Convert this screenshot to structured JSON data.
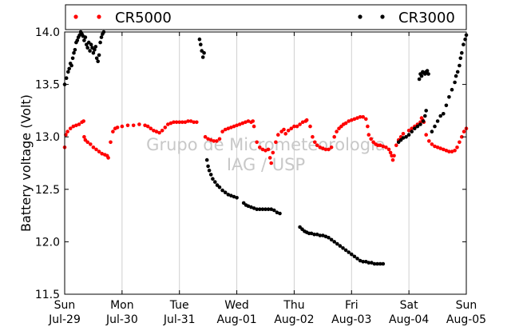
{
  "chart_data": {
    "type": "scatter",
    "title": "",
    "xlabel": "",
    "ylabel": "Battery voltage (Volt)",
    "ylim": [
      11.5,
      14.0
    ],
    "xlim": [
      0,
      7
    ],
    "grid": "x",
    "yticks": [
      11.5,
      12.0,
      12.5,
      13.0,
      13.5,
      14.0
    ],
    "ytick_labels": [
      "11.5",
      "12.0",
      "12.5",
      "13.0",
      "13.5",
      "14.0"
    ],
    "xticks": [
      {
        "x": 0,
        "day": "Sun",
        "date": "Jul-29"
      },
      {
        "x": 1,
        "day": "Mon",
        "date": "Jul-30"
      },
      {
        "x": 2,
        "day": "Tue",
        "date": "Jul-31"
      },
      {
        "x": 3,
        "day": "Wed",
        "date": "Aug-01"
      },
      {
        "x": 4,
        "day": "Thu",
        "date": "Aug-02"
      },
      {
        "x": 5,
        "day": "Fri",
        "date": "Aug-03"
      },
      {
        "x": 6,
        "day": "Sat",
        "date": "Aug-04"
      },
      {
        "x": 7,
        "day": "Sun",
        "date": "Aug-05"
      }
    ],
    "legend": {
      "placement": "top",
      "entries": [
        "CR5000",
        "CR3000"
      ]
    },
    "watermark": [
      "Grupo de Micrometeorologia",
      "IAG / USP"
    ],
    "series": [
      {
        "name": "CR5000",
        "color": "#ff0000",
        "points": [
          [
            0.0,
            12.9
          ],
          [
            0.02,
            13.02
          ],
          [
            0.05,
            13.05
          ],
          [
            0.1,
            13.08
          ],
          [
            0.15,
            13.1
          ],
          [
            0.2,
            13.11
          ],
          [
            0.25,
            13.12
          ],
          [
            0.3,
            13.14
          ],
          [
            0.33,
            13.15
          ],
          [
            0.34,
            13.0
          ],
          [
            0.36,
            12.97
          ],
          [
            0.4,
            12.95
          ],
          [
            0.45,
            12.93
          ],
          [
            0.5,
            12.9
          ],
          [
            0.55,
            12.88
          ],
          [
            0.6,
            12.86
          ],
          [
            0.65,
            12.84
          ],
          [
            0.7,
            12.83
          ],
          [
            0.74,
            12.82
          ],
          [
            0.76,
            12.8
          ],
          [
            0.8,
            12.95
          ],
          [
            0.84,
            13.05
          ],
          [
            0.88,
            13.08
          ],
          [
            0.92,
            13.09
          ],
          [
            1.0,
            13.1
          ],
          [
            1.1,
            13.11
          ],
          [
            1.2,
            13.11
          ],
          [
            1.3,
            13.12
          ],
          [
            1.4,
            13.11
          ],
          [
            1.45,
            13.1
          ],
          [
            1.5,
            13.08
          ],
          [
            1.55,
            13.06
          ],
          [
            1.6,
            13.05
          ],
          [
            1.65,
            13.04
          ],
          [
            1.7,
            13.06
          ],
          [
            1.75,
            13.09
          ],
          [
            1.8,
            13.12
          ],
          [
            1.85,
            13.13
          ],
          [
            1.9,
            13.14
          ],
          [
            1.95,
            13.14
          ],
          [
            2.0,
            13.14
          ],
          [
            2.05,
            13.14
          ],
          [
            2.1,
            13.14
          ],
          [
            2.15,
            13.15
          ],
          [
            2.2,
            13.15
          ],
          [
            2.25,
            13.14
          ],
          [
            2.3,
            13.14
          ],
          [
            2.45,
            13.0
          ],
          [
            2.5,
            12.98
          ],
          [
            2.55,
            12.97
          ],
          [
            2.6,
            12.96
          ],
          [
            2.65,
            12.96
          ],
          [
            2.7,
            12.98
          ],
          [
            2.75,
            13.05
          ],
          [
            2.8,
            13.07
          ],
          [
            2.85,
            13.08
          ],
          [
            2.9,
            13.09
          ],
          [
            2.95,
            13.1
          ],
          [
            3.0,
            13.11
          ],
          [
            3.05,
            13.12
          ],
          [
            3.1,
            13.13
          ],
          [
            3.15,
            13.14
          ],
          [
            3.2,
            13.15
          ],
          [
            3.25,
            13.14
          ],
          [
            3.28,
            13.15
          ],
          [
            3.3,
            13.1
          ],
          [
            3.35,
            12.95
          ],
          [
            3.4,
            12.9
          ],
          [
            3.45,
            12.88
          ],
          [
            3.5,
            12.87
          ],
          [
            3.55,
            12.88
          ],
          [
            3.58,
            12.8
          ],
          [
            3.6,
            12.75
          ],
          [
            3.63,
            12.85
          ],
          [
            3.68,
            12.95
          ],
          [
            3.72,
            13.02
          ],
          [
            3.78,
            13.05
          ],
          [
            3.82,
            13.07
          ],
          [
            3.85,
            13.03
          ],
          [
            3.9,
            13.06
          ],
          [
            3.95,
            13.08
          ],
          [
            4.0,
            13.1
          ],
          [
            4.05,
            13.1
          ],
          [
            4.1,
            13.12
          ],
          [
            4.15,
            13.14
          ],
          [
            4.2,
            13.15
          ],
          [
            4.22,
            13.16
          ],
          [
            4.28,
            13.1
          ],
          [
            4.32,
            13.0
          ],
          [
            4.36,
            12.95
          ],
          [
            4.4,
            12.92
          ],
          [
            4.45,
            12.9
          ],
          [
            4.5,
            12.89
          ],
          [
            4.55,
            12.88
          ],
          [
            4.6,
            12.88
          ],
          [
            4.65,
            12.9
          ],
          [
            4.7,
            13.0
          ],
          [
            4.74,
            13.05
          ],
          [
            4.78,
            13.08
          ],
          [
            4.82,
            13.1
          ],
          [
            4.86,
            13.12
          ],
          [
            4.9,
            13.13
          ],
          [
            4.95,
            13.15
          ],
          [
            5.0,
            13.16
          ],
          [
            5.05,
            13.17
          ],
          [
            5.1,
            13.18
          ],
          [
            5.15,
            13.19
          ],
          [
            5.2,
            13.19
          ],
          [
            5.25,
            13.17
          ],
          [
            5.28,
            13.1
          ],
          [
            5.3,
            13.02
          ],
          [
            5.34,
            12.98
          ],
          [
            5.38,
            12.95
          ],
          [
            5.42,
            12.93
          ],
          [
            5.46,
            12.92
          ],
          [
            5.5,
            12.92
          ],
          [
            5.55,
            12.91
          ],
          [
            5.6,
            12.9
          ],
          [
            5.65,
            12.88
          ],
          [
            5.68,
            12.85
          ],
          [
            5.7,
            12.82
          ],
          [
            5.72,
            12.78
          ],
          [
            5.74,
            12.82
          ],
          [
            5.78,
            12.92
          ],
          [
            5.82,
            12.97
          ],
          [
            5.86,
            13.0
          ],
          [
            5.9,
            13.03
          ],
          [
            6.0,
            13.06
          ],
          [
            6.05,
            13.08
          ],
          [
            6.1,
            13.1
          ],
          [
            6.15,
            13.12
          ],
          [
            6.2,
            13.14
          ],
          [
            6.22,
            13.18
          ],
          [
            6.24,
            13.16
          ],
          [
            6.26,
            13.14
          ],
          [
            6.3,
            13.02
          ],
          [
            6.35,
            12.96
          ],
          [
            6.4,
            12.93
          ],
          [
            6.45,
            12.91
          ],
          [
            6.5,
            12.9
          ],
          [
            6.55,
            12.89
          ],
          [
            6.6,
            12.88
          ],
          [
            6.65,
            12.87
          ],
          [
            6.7,
            12.86
          ],
          [
            6.75,
            12.86
          ],
          [
            6.8,
            12.87
          ],
          [
            6.84,
            12.9
          ],
          [
            6.88,
            12.95
          ],
          [
            6.92,
            13.0
          ],
          [
            6.96,
            13.05
          ],
          [
            7.0,
            13.08
          ]
        ]
      },
      {
        "name": "CR3000",
        "color": "#000000",
        "points": [
          [
            0.0,
            13.5
          ],
          [
            0.03,
            13.56
          ],
          [
            0.06,
            13.62
          ],
          [
            0.08,
            13.65
          ],
          [
            0.1,
            13.7
          ],
          [
            0.12,
            13.68
          ],
          [
            0.14,
            13.75
          ],
          [
            0.16,
            13.8
          ],
          [
            0.18,
            13.83
          ],
          [
            0.2,
            13.9
          ],
          [
            0.22,
            13.92
          ],
          [
            0.24,
            13.95
          ],
          [
            0.26,
            13.97
          ],
          [
            0.28,
            14.0
          ],
          [
            0.3,
            13.98
          ],
          [
            0.32,
            13.96
          ],
          [
            0.34,
            13.92
          ],
          [
            0.36,
            13.95
          ],
          [
            0.38,
            13.88
          ],
          [
            0.4,
            13.85
          ],
          [
            0.42,
            13.9
          ],
          [
            0.44,
            13.82
          ],
          [
            0.46,
            13.88
          ],
          [
            0.48,
            13.85
          ],
          [
            0.5,
            13.8
          ],
          [
            0.52,
            13.83
          ],
          [
            0.54,
            13.86
          ],
          [
            0.56,
            13.75
          ],
          [
            0.58,
            13.72
          ],
          [
            0.6,
            13.78
          ],
          [
            0.62,
            13.9
          ],
          [
            0.64,
            13.95
          ],
          [
            0.66,
            13.98
          ],
          [
            0.68,
            14.0
          ],
          [
            2.35,
            13.93
          ],
          [
            2.37,
            13.88
          ],
          [
            2.39,
            13.82
          ],
          [
            2.41,
            13.76
          ],
          [
            2.43,
            13.8
          ],
          [
            2.48,
            12.78
          ],
          [
            2.5,
            12.72
          ],
          [
            2.52,
            12.68
          ],
          [
            2.55,
            12.64
          ],
          [
            2.58,
            12.6
          ],
          [
            2.62,
            12.57
          ],
          [
            2.66,
            12.54
          ],
          [
            2.7,
            12.52
          ],
          [
            2.75,
            12.49
          ],
          [
            2.8,
            12.47
          ],
          [
            2.85,
            12.45
          ],
          [
            2.9,
            12.44
          ],
          [
            2.95,
            12.43
          ],
          [
            3.0,
            12.42
          ],
          [
            3.12,
            12.37
          ],
          [
            3.16,
            12.35
          ],
          [
            3.2,
            12.34
          ],
          [
            3.25,
            12.33
          ],
          [
            3.3,
            12.32
          ],
          [
            3.35,
            12.31
          ],
          [
            3.4,
            12.31
          ],
          [
            3.45,
            12.31
          ],
          [
            3.5,
            12.31
          ],
          [
            3.55,
            12.31
          ],
          [
            3.6,
            12.31
          ],
          [
            3.65,
            12.3
          ],
          [
            3.7,
            12.28
          ],
          [
            3.75,
            12.27
          ],
          [
            4.1,
            12.14
          ],
          [
            4.14,
            12.12
          ],
          [
            4.18,
            12.1
          ],
          [
            4.22,
            12.09
          ],
          [
            4.26,
            12.08
          ],
          [
            4.3,
            12.08
          ],
          [
            4.35,
            12.07
          ],
          [
            4.4,
            12.07
          ],
          [
            4.45,
            12.06
          ],
          [
            4.5,
            12.06
          ],
          [
            4.55,
            12.05
          ],
          [
            4.6,
            12.04
          ],
          [
            4.65,
            12.02
          ],
          [
            4.7,
            12.0
          ],
          [
            4.75,
            11.98
          ],
          [
            4.8,
            11.96
          ],
          [
            4.85,
            11.94
          ],
          [
            4.9,
            11.92
          ],
          [
            4.95,
            11.9
          ],
          [
            5.0,
            11.88
          ],
          [
            5.05,
            11.86
          ],
          [
            5.1,
            11.84
          ],
          [
            5.15,
            11.82
          ],
          [
            5.2,
            11.81
          ],
          [
            5.25,
            11.81
          ],
          [
            5.3,
            11.8
          ],
          [
            5.35,
            11.8
          ],
          [
            5.4,
            11.79
          ],
          [
            5.45,
            11.79
          ],
          [
            5.5,
            11.79
          ],
          [
            5.55,
            11.79
          ],
          [
            5.82,
            12.95
          ],
          [
            5.86,
            12.97
          ],
          [
            5.9,
            12.99
          ],
          [
            5.95,
            13.0
          ],
          [
            6.0,
            13.02
          ],
          [
            6.05,
            13.05
          ],
          [
            6.1,
            13.08
          ],
          [
            6.15,
            13.1
          ],
          [
            6.2,
            13.12
          ],
          [
            6.25,
            13.15
          ],
          [
            6.28,
            13.2
          ],
          [
            6.3,
            13.25
          ],
          [
            6.18,
            13.55
          ],
          [
            6.2,
            13.6
          ],
          [
            6.22,
            13.58
          ],
          [
            6.24,
            13.62
          ],
          [
            6.26,
            13.61
          ],
          [
            6.28,
            13.6
          ],
          [
            6.3,
            13.62
          ],
          [
            6.32,
            13.63
          ],
          [
            6.34,
            13.6
          ],
          [
            6.4,
            13.05
          ],
          [
            6.45,
            13.1
          ],
          [
            6.5,
            13.15
          ],
          [
            6.55,
            13.2
          ],
          [
            6.6,
            13.22
          ],
          [
            6.65,
            13.3
          ],
          [
            6.7,
            13.38
          ],
          [
            6.75,
            13.45
          ],
          [
            6.8,
            13.52
          ],
          [
            6.82,
            13.58
          ],
          [
            6.85,
            13.62
          ],
          [
            6.88,
            13.68
          ],
          [
            6.9,
            13.75
          ],
          [
            6.92,
            13.8
          ],
          [
            6.95,
            13.88
          ],
          [
            6.98,
            13.93
          ],
          [
            7.0,
            13.97
          ]
        ]
      }
    ]
  }
}
